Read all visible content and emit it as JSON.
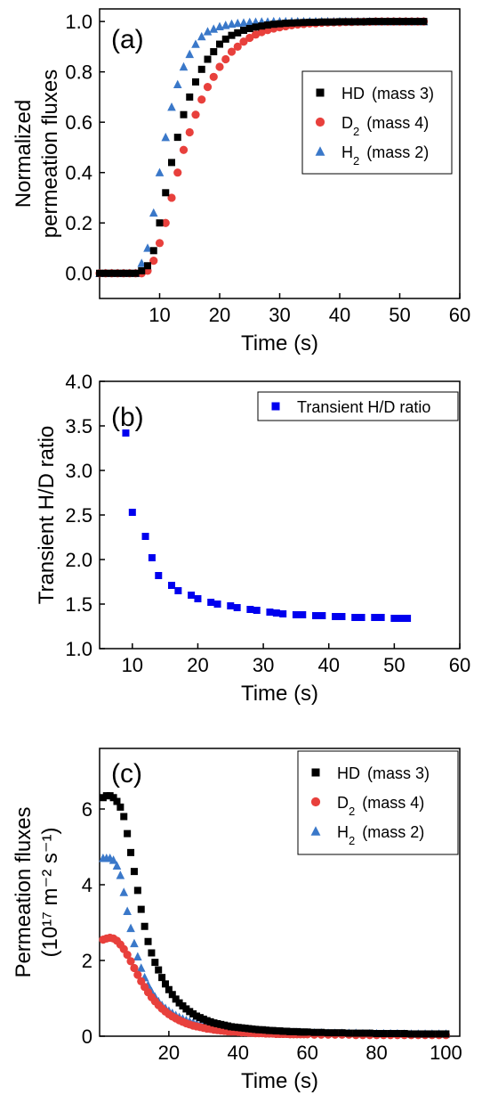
{
  "chart_data": [
    {
      "type": "scatter",
      "panel_label": "(a)",
      "xlabel": "Time (s)",
      "ylabel_lines": [
        "Normalized",
        "permeation fluxes"
      ],
      "xlim": [
        0,
        60
      ],
      "ylim": [
        -0.1,
        1.05
      ],
      "xticks": [
        10,
        20,
        30,
        40,
        50,
        60
      ],
      "yticks": [
        0.0,
        0.2,
        0.4,
        0.6,
        0.8,
        1.0
      ],
      "ytick_decimals": 1,
      "legend_position": "right",
      "series": [
        {
          "name": "HD",
          "sub": "",
          "suffix": "(mass 3)",
          "marker": "square",
          "color": "#000000",
          "x": [
            0,
            1,
            2,
            3,
            4,
            5,
            6,
            7,
            8,
            9,
            10,
            11,
            12,
            13,
            14,
            15,
            16,
            17,
            18,
            19,
            20,
            21,
            22,
            23,
            24,
            25,
            26,
            27,
            28,
            29,
            30,
            31,
            32,
            33,
            34,
            35,
            36,
            37,
            38,
            39,
            40,
            41,
            42,
            43,
            44,
            45,
            46,
            47,
            48,
            49,
            50,
            51,
            52,
            53,
            54
          ],
          "y": [
            0,
            0,
            0,
            0,
            0,
            0,
            0,
            0.01,
            0.03,
            0.09,
            0.2,
            0.32,
            0.44,
            0.54,
            0.63,
            0.7,
            0.76,
            0.81,
            0.85,
            0.88,
            0.91,
            0.93,
            0.945,
            0.955,
            0.965,
            0.972,
            0.978,
            0.982,
            0.986,
            0.989,
            0.991,
            0.993,
            0.994,
            0.995,
            0.996,
            0.997,
            0.997,
            0.998,
            0.998,
            0.998,
            0.999,
            0.999,
            0.999,
            0.999,
            0.999,
            1,
            1,
            1,
            1,
            1,
            1,
            1,
            1,
            1,
            1
          ]
        },
        {
          "name": "D",
          "sub": "2",
          "suffix": "(mass 4)",
          "marker": "circle",
          "color": "#e8403c",
          "x": [
            0,
            1,
            2,
            3,
            4,
            5,
            6,
            7,
            8,
            9,
            10,
            11,
            12,
            13,
            14,
            15,
            16,
            17,
            18,
            19,
            20,
            21,
            22,
            23,
            24,
            25,
            26,
            27,
            28,
            29,
            30,
            31,
            32,
            33,
            34,
            35,
            36,
            37,
            38,
            39,
            40,
            41,
            42,
            43,
            44,
            45,
            46,
            47,
            48,
            49,
            50,
            51,
            52,
            53,
            54
          ],
          "y": [
            0,
            0,
            0,
            0,
            0,
            0,
            0,
            0,
            0.01,
            0.05,
            0.12,
            0.2,
            0.3,
            0.4,
            0.49,
            0.56,
            0.63,
            0.69,
            0.74,
            0.78,
            0.82,
            0.85,
            0.88,
            0.9,
            0.92,
            0.935,
            0.948,
            0.958,
            0.966,
            0.972,
            0.977,
            0.981,
            0.985,
            0.988,
            0.99,
            0.992,
            0.993,
            0.995,
            0.996,
            0.997,
            0.997,
            0.998,
            0.998,
            0.999,
            0.999,
            0.999,
            1,
            1,
            1,
            1,
            1,
            1,
            1,
            1,
            1
          ]
        },
        {
          "name": "H",
          "sub": "2",
          "suffix": "(mass 2)",
          "marker": "triangle",
          "color": "#3a78c9",
          "x": [
            0,
            1,
            2,
            3,
            4,
            5,
            6,
            7,
            8,
            9,
            10,
            11,
            12,
            13,
            14,
            15,
            16,
            17,
            18,
            19,
            20,
            21,
            22,
            23,
            24,
            25,
            26,
            27,
            28,
            29,
            30,
            31,
            32,
            33,
            34,
            35,
            36,
            37,
            38,
            39,
            40,
            41,
            42,
            43,
            44,
            45,
            46,
            47,
            48,
            49,
            50,
            51,
            52,
            53,
            54
          ],
          "y": [
            0,
            0,
            0,
            0,
            0,
            0,
            0,
            0.04,
            0.1,
            0.24,
            0.4,
            0.54,
            0.66,
            0.75,
            0.82,
            0.87,
            0.91,
            0.94,
            0.96,
            0.97,
            0.98,
            0.985,
            0.99,
            0.993,
            0.995,
            0.997,
            0.998,
            0.999,
            0.999,
            1,
            1,
            1,
            1,
            1,
            1,
            1,
            1,
            1,
            1,
            1,
            1,
            1,
            1,
            1,
            1,
            1,
            1,
            1,
            1,
            1,
            1,
            1,
            1,
            1,
            1
          ]
        }
      ]
    },
    {
      "type": "scatter",
      "panel_label": "(b)",
      "xlabel": "Time (s)",
      "ylabel_lines": [
        "Transient H/D ratio"
      ],
      "xlim": [
        5,
        60
      ],
      "ylim": [
        1.0,
        4.0
      ],
      "xticks": [
        10,
        20,
        30,
        40,
        50,
        60
      ],
      "yticks": [
        1.0,
        1.5,
        2.0,
        2.5,
        3.0,
        3.5,
        4.0
      ],
      "ytick_decimals": 1,
      "legend_position": "top-right",
      "series": [
        {
          "name": "Transient H/D ratio",
          "sub": "",
          "suffix": "",
          "marker": "square",
          "color": "#0000ee",
          "x": [
            9,
            10,
            12,
            13,
            14,
            16,
            17,
            19,
            20,
            22,
            23,
            25,
            26,
            28,
            29,
            31,
            32,
            33,
            35,
            36,
            38,
            39,
            41,
            42,
            44,
            45,
            47,
            48,
            50,
            51,
            52
          ],
          "y": [
            3.42,
            2.53,
            2.26,
            2.02,
            1.82,
            1.71,
            1.65,
            1.6,
            1.56,
            1.52,
            1.5,
            1.48,
            1.46,
            1.44,
            1.43,
            1.41,
            1.4,
            1.39,
            1.38,
            1.38,
            1.37,
            1.37,
            1.36,
            1.36,
            1.35,
            1.35,
            1.35,
            1.35,
            1.34,
            1.34,
            1.34
          ]
        }
      ]
    },
    {
      "type": "scatter",
      "panel_label": "(c)",
      "xlabel": "Time (s)",
      "ylabel_lines": [
        "Permeation fluxes",
        "(10¹⁷ m⁻² s⁻¹)"
      ],
      "xlim": [
        0,
        104
      ],
      "ylim": [
        0,
        7.6
      ],
      "xticks": [
        20,
        40,
        60,
        80,
        100
      ],
      "yticks": [
        0,
        2,
        4,
        6
      ],
      "ytick_decimals": 0,
      "legend_position": "top-right",
      "series": [
        {
          "name": "HD",
          "sub": "",
          "suffix": "(mass 3)",
          "marker": "square",
          "color": "#000000",
          "x": [
            1,
            2,
            3,
            4,
            5,
            6,
            7,
            8,
            9,
            10,
            11,
            12,
            13,
            14,
            15,
            16,
            17,
            18,
            19,
            20,
            21,
            22,
            23,
            24,
            25,
            26,
            27,
            28,
            29,
            30,
            31,
            32,
            33,
            34,
            35,
            36,
            37,
            38,
            39,
            40,
            41,
            42,
            43,
            44,
            45,
            46,
            47,
            48,
            49,
            50,
            51,
            52,
            53,
            54,
            55,
            56,
            57,
            58,
            59,
            60,
            62,
            64,
            66,
            68,
            70,
            72,
            74,
            76,
            78,
            80,
            82,
            84,
            86,
            88,
            90,
            92,
            94,
            96,
            98,
            100
          ],
          "y": [
            6.3,
            6.35,
            6.35,
            6.3,
            6.2,
            6.05,
            5.8,
            5.35,
            4.85,
            4.35,
            3.85,
            3.35,
            2.9,
            2.5,
            2.2,
            1.95,
            1.75,
            1.55,
            1.38,
            1.23,
            1.1,
            0.98,
            0.88,
            0.8,
            0.72,
            0.65,
            0.59,
            0.53,
            0.49,
            0.45,
            0.41,
            0.38,
            0.35,
            0.33,
            0.31,
            0.29,
            0.27,
            0.25,
            0.24,
            0.23,
            0.22,
            0.21,
            0.2,
            0.19,
            0.18,
            0.17,
            0.17,
            0.16,
            0.15,
            0.15,
            0.14,
            0.14,
            0.13,
            0.13,
            0.12,
            0.12,
            0.12,
            0.11,
            0.11,
            0.11,
            0.1,
            0.1,
            0.09,
            0.09,
            0.09,
            0.08,
            0.08,
            0.08,
            0.08,
            0.07,
            0.07,
            0.07,
            0.07,
            0.07,
            0.06,
            0.06,
            0.06,
            0.06,
            0.06,
            0.06
          ]
        },
        {
          "name": "D",
          "sub": "2",
          "suffix": "(mass 4)",
          "marker": "circle",
          "color": "#e8403c",
          "x": [
            1,
            2,
            3,
            4,
            5,
            6,
            7,
            8,
            9,
            10,
            11,
            12,
            13,
            14,
            15,
            16,
            17,
            18,
            19,
            20,
            21,
            22,
            23,
            24,
            25,
            26,
            27,
            28,
            29,
            30,
            31,
            32,
            33,
            34,
            35,
            36,
            37,
            38,
            39,
            40,
            41,
            42,
            43,
            44,
            45,
            46,
            47,
            48,
            49,
            50,
            51,
            52,
            53,
            54,
            55,
            56,
            57,
            58,
            59,
            60,
            62,
            64,
            66,
            68,
            70,
            72,
            74,
            76,
            78,
            80,
            82,
            84,
            86,
            88,
            90,
            92,
            94,
            96,
            98,
            100
          ],
          "y": [
            2.55,
            2.58,
            2.6,
            2.58,
            2.52,
            2.42,
            2.3,
            2.15,
            1.98,
            1.8,
            1.62,
            1.45,
            1.3,
            1.16,
            1.03,
            0.92,
            0.82,
            0.73,
            0.65,
            0.58,
            0.52,
            0.47,
            0.42,
            0.38,
            0.34,
            0.31,
            0.28,
            0.26,
            0.24,
            0.22,
            0.2,
            0.19,
            0.17,
            0.16,
            0.15,
            0.14,
            0.13,
            0.12,
            0.12,
            0.11,
            0.1,
            0.1,
            0.09,
            0.09,
            0.08,
            0.08,
            0.08,
            0.07,
            0.07,
            0.07,
            0.06,
            0.06,
            0.06,
            0.06,
            0.05,
            0.05,
            0.05,
            0.05,
            0.05,
            0.05,
            0.04,
            0.04,
            0.04,
            0.04,
            0.04,
            0.04,
            0.03,
            0.03,
            0.03,
            0.03,
            0.03,
            0.03,
            0.03,
            0.03,
            0.03,
            0.03,
            0.03,
            0.03,
            0.03,
            0.03
          ]
        },
        {
          "name": "H",
          "sub": "2",
          "suffix": "(mass 2)",
          "marker": "triangle",
          "color": "#3a78c9",
          "x": [
            1,
            2,
            3,
            4,
            5,
            6,
            7,
            8,
            9,
            10,
            11,
            12,
            13,
            14,
            15,
            16,
            17,
            18,
            19,
            20,
            21,
            22,
            23,
            24,
            25,
            26,
            27,
            28,
            29,
            30,
            31,
            32,
            33,
            34,
            35,
            36,
            37,
            38,
            39,
            40,
            41,
            42,
            43,
            44,
            45,
            46,
            47,
            48,
            49,
            50,
            51,
            52,
            53,
            54,
            55,
            56,
            57,
            58,
            59,
            60,
            62,
            64,
            66,
            68,
            70,
            72,
            74,
            76,
            78,
            80,
            82,
            84,
            86,
            88,
            90,
            92,
            94,
            96,
            98,
            100
          ],
          "y": [
            4.7,
            4.7,
            4.7,
            4.65,
            4.5,
            4.25,
            3.8,
            3.3,
            2.85,
            2.45,
            2.1,
            1.8,
            1.55,
            1.35,
            1.18,
            1.04,
            0.92,
            0.82,
            0.74,
            0.67,
            0.61,
            0.55,
            0.5,
            0.46,
            0.42,
            0.39,
            0.36,
            0.33,
            0.31,
            0.29,
            0.27,
            0.25,
            0.24,
            0.22,
            0.21,
            0.2,
            0.19,
            0.18,
            0.17,
            0.17,
            0.16,
            0.15,
            0.15,
            0.14,
            0.14,
            0.13,
            0.13,
            0.12,
            0.12,
            0.12,
            0.11,
            0.11,
            0.11,
            0.1,
            0.1,
            0.1,
            0.1,
            0.1,
            0.09,
            0.09,
            0.09,
            0.09,
            0.08,
            0.08,
            0.08,
            0.08,
            0.08,
            0.07,
            0.07,
            0.07,
            0.07,
            0.07,
            0.07,
            0.06,
            0.06,
            0.06,
            0.06,
            0.06,
            0.06,
            0.06
          ]
        }
      ]
    }
  ]
}
